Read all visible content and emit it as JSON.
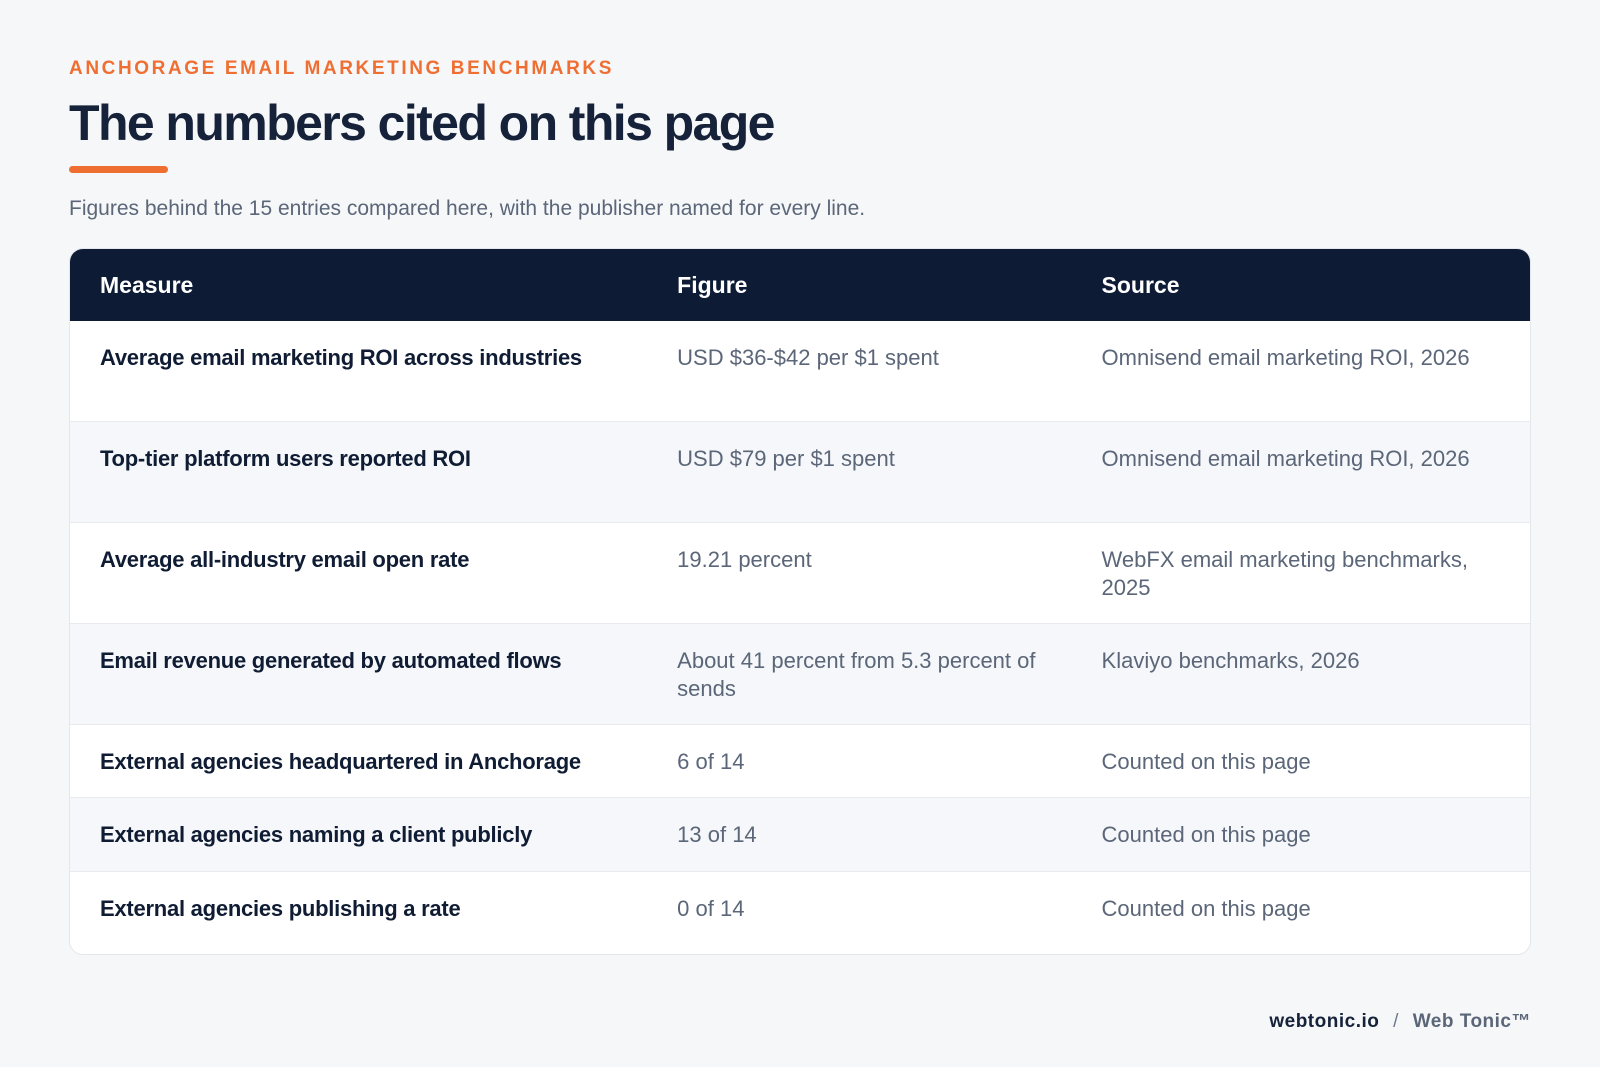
{
  "header": {
    "eyebrow": "ANCHORAGE EMAIL MARKETING BENCHMARKS",
    "title": "The numbers cited on this page",
    "subtitle": "Figures behind the 15 entries compared here, with the publisher named for every line."
  },
  "table": {
    "columns": {
      "measure": "Measure",
      "figure": "Figure",
      "source": "Source"
    },
    "rows": [
      {
        "measure": "Average email marketing ROI across industries",
        "figure": "USD $36-$42 per $1 spent",
        "source": "Omnisend email marketing ROI, 2026"
      },
      {
        "measure": "Top-tier platform users reported ROI",
        "figure": "USD $79 per $1 spent",
        "source": "Omnisend email marketing ROI, 2026"
      },
      {
        "measure": "Average all-industry email open rate",
        "figure": "19.21 percent",
        "source": "WebFX email marketing benchmarks, 2025"
      },
      {
        "measure": "Email revenue generated by automated flows",
        "figure": "About 41 percent from 5.3 percent of sends",
        "source": "Klaviyo benchmarks, 2026"
      },
      {
        "measure": "External agencies headquartered in Anchorage",
        "figure": "6 of 14",
        "source": "Counted on this page"
      },
      {
        "measure": "External agencies naming a client publicly",
        "figure": "13 of 14",
        "source": "Counted on this page"
      },
      {
        "measure": "External agencies publishing a rate",
        "figure": "0 of 14",
        "source": "Counted on this page"
      }
    ]
  },
  "footer": {
    "domain": "webtonic.io",
    "separator": "/",
    "brand": "Web Tonic™"
  },
  "colors": {
    "accent": "#ef6f32",
    "header_background": "#0d1b35",
    "page_background": "#f6f7f9"
  }
}
